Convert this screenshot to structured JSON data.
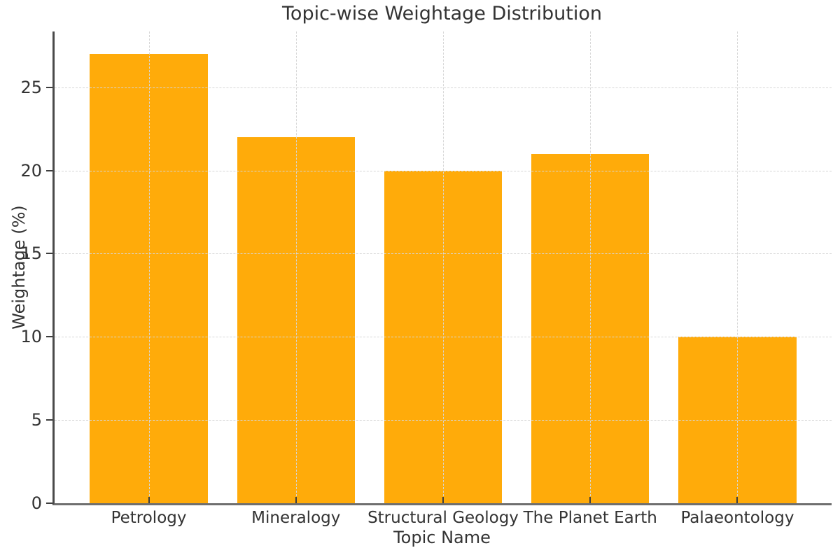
{
  "chart_data": {
    "type": "bar",
    "title": "Topic-wise Weightage Distribution",
    "xlabel": "Topic Name",
    "ylabel": "Weightage (%)",
    "categories": [
      "Petrology",
      "Mineralogy",
      "Structural Geology",
      "The Planet Earth",
      "Palaeontology"
    ],
    "values": [
      27,
      22,
      20,
      21,
      10
    ],
    "yticks": [
      0,
      5,
      10,
      15,
      20,
      25
    ],
    "ylim": [
      0,
      28.35
    ],
    "grid": "both-axes-dashed",
    "grid_above_bars": true,
    "legend": "none",
    "bar_width_fraction": 0.8,
    "x_edge_offset_units": 0.64
  },
  "style": {
    "background_color": "#ffffff",
    "bar_color": "#FFAB0A",
    "grid_color": "#d6d6d6",
    "text_color": "#333333",
    "left_spine_color": "#4a4a4a",
    "bottom_spine_color": "#6f6f6f",
    "tick_color": "#3d3d3d"
  }
}
